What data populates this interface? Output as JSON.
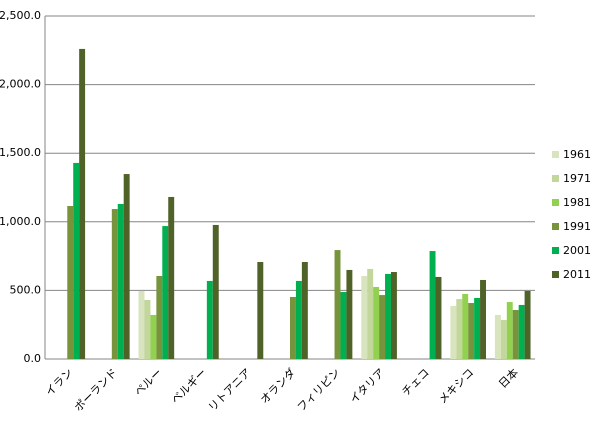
{
  "chart_data": {
    "type": "bar",
    "categories": [
      "イラン",
      "ポーランド",
      "ペルー",
      "ベルギー",
      "リトアニア",
      "オランダ",
      "フィリピン",
      "イタリア",
      "チェコ",
      "メキシコ",
      "日本"
    ],
    "series": [
      {
        "name": "1961",
        "color": "#d7e4bd",
        "values": [
          null,
          null,
          496,
          null,
          null,
          null,
          null,
          605,
          null,
          386,
          321
        ]
      },
      {
        "name": "1971",
        "color": "#c3d69b",
        "values": [
          null,
          null,
          430,
          null,
          null,
          null,
          null,
          656,
          null,
          437,
          284
        ]
      },
      {
        "name": "1981",
        "color": "#92d050",
        "values": [
          null,
          null,
          321,
          null,
          null,
          null,
          null,
          525,
          null,
          474,
          415
        ]
      },
      {
        "name": "1991",
        "color": "#77933c",
        "values": [
          1115,
          1093,
          605,
          null,
          null,
          452,
          794,
          466,
          null,
          408,
          357
        ]
      },
      {
        "name": "2001",
        "color": "#00b050",
        "values": [
          1429,
          1130,
          969,
          569,
          null,
          569,
          488,
          620,
          787,
          445,
          394
        ]
      },
      {
        "name": "2011",
        "color": "#4f6228",
        "values": [
          2260,
          1348,
          1181,
          977,
          707,
          707,
          649,
          634,
          598,
          576,
          496
        ]
      }
    ],
    "ylim": [
      0,
      2500
    ],
    "yticks": [
      {
        "value": 0,
        "label": "0.0"
      },
      {
        "value": 500,
        "label": "500.0"
      },
      {
        "value": 1000,
        "label": "1,000.0"
      },
      {
        "value": 1500,
        "label": "1,500.0"
      },
      {
        "value": 2000,
        "label": "2,000.0"
      },
      {
        "value": 2500,
        "label": "2,500.0"
      }
    ],
    "grid": true,
    "legend": "right"
  }
}
